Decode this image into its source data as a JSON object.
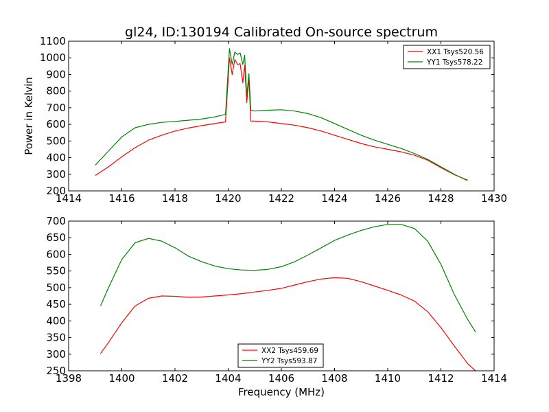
{
  "chart_data": [
    {
      "type": "line",
      "title": "gl24, ID:130194 Calibrated On-source spectrum",
      "ylabel": "Power in Kelvin",
      "xlabel": "",
      "xlim": [
        1414,
        1430
      ],
      "ylim": [
        200,
        1100
      ],
      "xticks": [
        1414,
        1416,
        1418,
        1420,
        1422,
        1424,
        1426,
        1428,
        1430
      ],
      "yticks": [
        200,
        300,
        400,
        500,
        600,
        700,
        800,
        900,
        1000,
        1100
      ],
      "legend_position": "top-right",
      "series": [
        {
          "name": "XX1 Tsys520.56",
          "color": "#ff0000",
          "x": [
            1415.0,
            1415.5,
            1416.0,
            1416.5,
            1417.0,
            1417.5,
            1418.0,
            1418.5,
            1419.0,
            1419.5,
            1419.9,
            1420.05,
            1420.15,
            1420.25,
            1420.35,
            1420.45,
            1420.55,
            1420.62,
            1420.7,
            1420.78,
            1420.85,
            1421.0,
            1421.5,
            1422.0,
            1422.5,
            1423.0,
            1423.5,
            1424.0,
            1424.5,
            1425.0,
            1425.5,
            1426.0,
            1426.5,
            1427.0,
            1427.5,
            1428.0,
            1428.5,
            1429.0
          ],
          "y": [
            293,
            345,
            405,
            460,
            505,
            535,
            560,
            578,
            592,
            605,
            615,
            1000,
            900,
            990,
            960,
            965,
            850,
            955,
            730,
            880,
            620,
            620,
            615,
            605,
            595,
            580,
            560,
            535,
            510,
            485,
            465,
            450,
            435,
            415,
            385,
            340,
            298,
            265
          ]
        },
        {
          "name": "YY1 Tsys578.22",
          "color": "#008000",
          "x": [
            1415.0,
            1415.5,
            1416.0,
            1416.5,
            1417.0,
            1417.5,
            1418.0,
            1418.5,
            1419.0,
            1419.5,
            1419.9,
            1420.05,
            1420.15,
            1420.25,
            1420.35,
            1420.45,
            1420.55,
            1420.62,
            1420.7,
            1420.78,
            1420.85,
            1421.0,
            1421.5,
            1422.0,
            1422.5,
            1423.0,
            1423.5,
            1424.0,
            1424.5,
            1425.0,
            1425.5,
            1426.0,
            1426.5,
            1427.0,
            1427.5,
            1428.0,
            1428.5,
            1429.0
          ],
          "y": [
            355,
            440,
            525,
            580,
            600,
            612,
            618,
            625,
            632,
            645,
            660,
            1055,
            960,
            1035,
            1020,
            1030,
            960,
            1015,
            770,
            905,
            685,
            680,
            685,
            688,
            680,
            665,
            640,
            605,
            570,
            535,
            505,
            480,
            455,
            425,
            390,
            345,
            300,
            262
          ]
        }
      ]
    },
    {
      "type": "line",
      "title": "",
      "xlabel": "Frequency (MHz)",
      "ylabel": "",
      "xlim": [
        1398,
        1414
      ],
      "ylim": [
        250,
        700
      ],
      "xticks": [
        1398,
        1400,
        1402,
        1404,
        1406,
        1408,
        1410,
        1412,
        1414
      ],
      "yticks": [
        250,
        300,
        350,
        400,
        450,
        500,
        550,
        600,
        650,
        700
      ],
      "legend_position": "bottom-center",
      "series": [
        {
          "name": "XX2 Tsys459.69",
          "color": "#ff0000",
          "x": [
            1399.2,
            1399.5,
            1400.0,
            1400.5,
            1401.0,
            1401.5,
            1402.0,
            1402.5,
            1403.0,
            1403.5,
            1404.0,
            1404.5,
            1405.0,
            1405.5,
            1406.0,
            1406.5,
            1407.0,
            1407.5,
            1408.0,
            1408.5,
            1409.0,
            1409.5,
            1410.0,
            1410.5,
            1411.0,
            1411.5,
            1412.0,
            1412.5,
            1413.0,
            1413.3
          ],
          "y": [
            302,
            335,
            395,
            445,
            468,
            475,
            474,
            471,
            472,
            475,
            478,
            482,
            487,
            492,
            498,
            508,
            518,
            526,
            530,
            528,
            518,
            505,
            492,
            478,
            460,
            428,
            380,
            325,
            272,
            250
          ]
        },
        {
          "name": "YY2 Tsys593.87",
          "color": "#008000",
          "x": [
            1399.2,
            1399.5,
            1400.0,
            1400.5,
            1401.0,
            1401.5,
            1402.0,
            1402.5,
            1403.0,
            1403.5,
            1404.0,
            1404.5,
            1405.0,
            1405.5,
            1406.0,
            1406.5,
            1407.0,
            1407.5,
            1408.0,
            1408.5,
            1409.0,
            1409.5,
            1410.0,
            1410.5,
            1411.0,
            1411.5,
            1412.0,
            1412.5,
            1413.0,
            1413.3
          ],
          "y": [
            445,
            500,
            585,
            635,
            648,
            640,
            620,
            595,
            578,
            565,
            557,
            553,
            552,
            555,
            563,
            578,
            598,
            620,
            642,
            658,
            672,
            683,
            690,
            690,
            678,
            640,
            570,
            480,
            405,
            367
          ]
        }
      ]
    }
  ]
}
